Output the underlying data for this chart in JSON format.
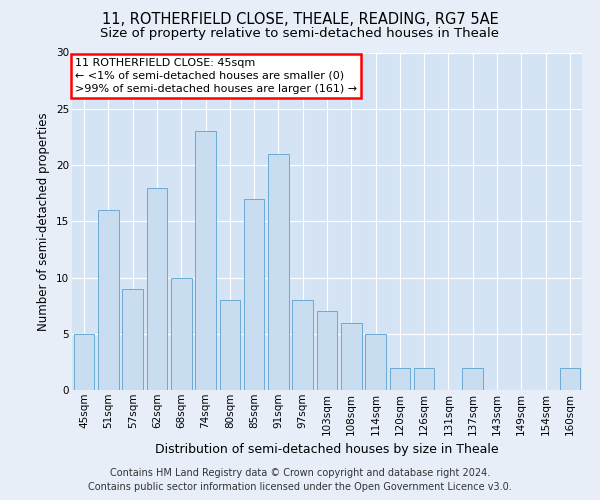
{
  "title1": "11, ROTHERFIELD CLOSE, THEALE, READING, RG7 5AE",
  "title2": "Size of property relative to semi-detached houses in Theale",
  "xlabel": "Distribution of semi-detached houses by size in Theale",
  "ylabel": "Number of semi-detached properties",
  "categories": [
    "45sqm",
    "51sqm",
    "57sqm",
    "62sqm",
    "68sqm",
    "74sqm",
    "80sqm",
    "85sqm",
    "91sqm",
    "97sqm",
    "103sqm",
    "108sqm",
    "114sqm",
    "120sqm",
    "126sqm",
    "131sqm",
    "137sqm",
    "143sqm",
    "149sqm",
    "154sqm",
    "160sqm"
  ],
  "values": [
    5,
    16,
    9,
    18,
    10,
    23,
    8,
    17,
    21,
    8,
    7,
    6,
    5,
    2,
    2,
    0,
    2,
    0,
    0,
    0,
    2
  ],
  "bar_color": "#c9ddf0",
  "bar_edge_color": "#6aaad4",
  "annotation_text_line1": "11 ROTHERFIELD CLOSE: 45sqm",
  "annotation_text_line2": "← <1% of semi-detached houses are smaller (0)",
  "annotation_text_line3": ">99% of semi-detached houses are larger (161) →",
  "ylim": [
    0,
    30
  ],
  "yticks": [
    0,
    5,
    10,
    15,
    20,
    25,
    30
  ],
  "footer_line1": "Contains HM Land Registry data © Crown copyright and database right 2024.",
  "footer_line2": "Contains public sector information licensed under the Open Government Licence v3.0.",
  "bg_color": "#e8eef8",
  "plot_bg_color": "#d5e4f5",
  "grid_color": "#ffffff",
  "title1_fontsize": 10.5,
  "title2_fontsize": 9.5,
  "xlabel_fontsize": 9,
  "ylabel_fontsize": 8.5,
  "tick_fontsize": 7.5,
  "footer_fontsize": 7,
  "ann_fontsize": 8
}
